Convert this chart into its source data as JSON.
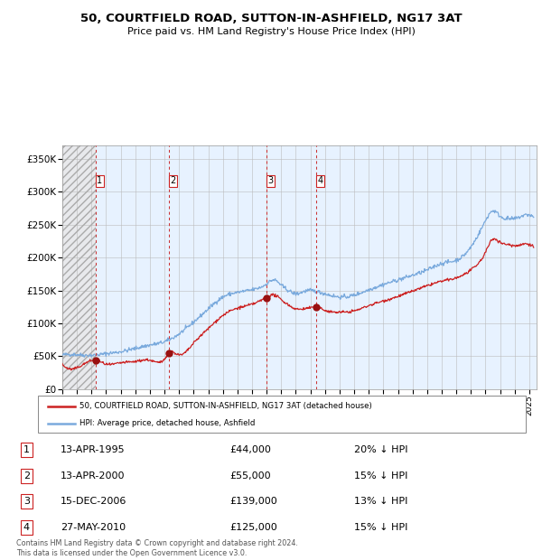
{
  "title_line1": "50, COURTFIELD ROAD, SUTTON-IN-ASHFIELD, NG17 3AT",
  "title_line2": "Price paid vs. HM Land Registry's House Price Index (HPI)",
  "ylim": [
    0,
    370000
  ],
  "yticks": [
    0,
    50000,
    100000,
    150000,
    200000,
    250000,
    300000,
    350000
  ],
  "ytick_labels": [
    "£0",
    "£50K",
    "£100K",
    "£150K",
    "£200K",
    "£250K",
    "£300K",
    "£350K"
  ],
  "xlim_start": 1993.0,
  "xlim_end": 2025.5,
  "background_color": "#ffffff",
  "plot_bg_color": "#ddeeff",
  "hatch_bg_color": "#e0e0e0",
  "grid_color": "#bbbbbb",
  "hpi_line_color": "#7aaadd",
  "price_line_color": "#cc2222",
  "sale_marker_color": "#991111",
  "dashed_line_color": "#cc3333",
  "sale_events": [
    {
      "label": "1",
      "date_num": 1995.28,
      "price": 44000,
      "pct": "20%",
      "date_str": "13-APR-1995"
    },
    {
      "label": "2",
      "date_num": 2000.28,
      "price": 55000,
      "pct": "15%",
      "date_str": "13-APR-2000"
    },
    {
      "label": "3",
      "date_num": 2006.96,
      "price": 139000,
      "pct": "13%",
      "date_str": "15-DEC-2006"
    },
    {
      "label": "4",
      "date_num": 2010.4,
      "price": 125000,
      "pct": "15%",
      "date_str": "27-MAY-2010"
    }
  ],
  "legend_label_price": "50, COURTFIELD ROAD, SUTTON-IN-ASHFIELD, NG17 3AT (detached house)",
  "legend_label_hpi": "HPI: Average price, detached house, Ashfield",
  "footer_line1": "Contains HM Land Registry data © Crown copyright and database right 2024.",
  "footer_line2": "This data is licensed under the Open Government Licence v3.0.",
  "hpi_anchors": [
    [
      1993.0,
      52000
    ],
    [
      1994.0,
      52500
    ],
    [
      1995.0,
      51500
    ],
    [
      1996.0,
      54000
    ],
    [
      1997.0,
      57000
    ],
    [
      1998.0,
      62000
    ],
    [
      1999.0,
      67000
    ],
    [
      2000.0,
      72000
    ],
    [
      2001.0,
      84000
    ],
    [
      2002.0,
      102000
    ],
    [
      2003.0,
      122000
    ],
    [
      2004.0,
      140000
    ],
    [
      2005.0,
      147000
    ],
    [
      2006.0,
      151000
    ],
    [
      2007.0,
      160000
    ],
    [
      2007.5,
      166000
    ],
    [
      2008.0,
      158000
    ],
    [
      2008.5,
      150000
    ],
    [
      2009.0,
      145000
    ],
    [
      2009.5,
      148000
    ],
    [
      2010.0,
      150000
    ],
    [
      2010.5,
      148000
    ],
    [
      2011.0,
      145000
    ],
    [
      2012.0,
      140000
    ],
    [
      2013.0,
      143000
    ],
    [
      2014.0,
      151000
    ],
    [
      2015.0,
      159000
    ],
    [
      2016.0,
      166000
    ],
    [
      2017.0,
      173000
    ],
    [
      2018.0,
      181000
    ],
    [
      2019.0,
      191000
    ],
    [
      2020.0,
      196000
    ],
    [
      2021.0,
      216000
    ],
    [
      2022.0,
      256000
    ],
    [
      2022.5,
      271000
    ],
    [
      2023.0,
      263000
    ],
    [
      2023.5,
      259000
    ],
    [
      2024.0,
      259000
    ],
    [
      2024.5,
      263000
    ],
    [
      2025.3,
      261000
    ]
  ],
  "price_anchors": [
    [
      1993.0,
      38000
    ],
    [
      1994.5,
      38500
    ],
    [
      1995.28,
      44000
    ],
    [
      1996.0,
      38000
    ],
    [
      1997.0,
      40000
    ],
    [
      1998.0,
      42000
    ],
    [
      1999.0,
      44000
    ],
    [
      2000.0,
      46000
    ],
    [
      2000.28,
      55000
    ],
    [
      2001.0,
      52000
    ],
    [
      2002.0,
      70000
    ],
    [
      2003.0,
      92000
    ],
    [
      2004.0,
      112000
    ],
    [
      2005.0,
      123000
    ],
    [
      2006.0,
      129000
    ],
    [
      2006.96,
      139000
    ],
    [
      2007.5,
      143000
    ],
    [
      2008.0,
      136000
    ],
    [
      2008.5,
      128000
    ],
    [
      2009.0,
      122000
    ],
    [
      2009.5,
      122000
    ],
    [
      2010.0,
      124000
    ],
    [
      2010.4,
      125000
    ],
    [
      2011.0,
      120000
    ],
    [
      2012.0,
      117000
    ],
    [
      2013.0,
      119000
    ],
    [
      2014.0,
      127000
    ],
    [
      2015.0,
      134000
    ],
    [
      2016.0,
      141000
    ],
    [
      2017.0,
      149000
    ],
    [
      2018.0,
      157000
    ],
    [
      2019.0,
      164000
    ],
    [
      2020.0,
      169000
    ],
    [
      2021.0,
      181000
    ],
    [
      2022.0,
      208000
    ],
    [
      2022.5,
      228000
    ],
    [
      2023.0,
      223000
    ],
    [
      2023.5,
      220000
    ],
    [
      2024.0,
      218000
    ],
    [
      2024.5,
      220000
    ],
    [
      2025.3,
      216000
    ]
  ]
}
